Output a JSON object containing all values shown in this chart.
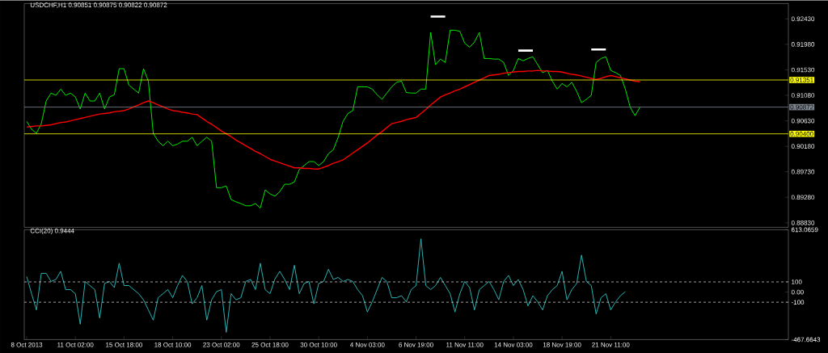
{
  "chart_data": [
    {
      "type": "line",
      "title": "USDCHF,H1 0.90851 0.90875 0.90822 0.90872",
      "categories": [
        null,
        null,
        null,
        null,
        null,
        null,
        null,
        null,
        null,
        null,
        null,
        null,
        null,
        null,
        null,
        null,
        null,
        null,
        null,
        null,
        null,
        null,
        null,
        null,
        null,
        null,
        null,
        null,
        null,
        null,
        null,
        null,
        null,
        null,
        null,
        null,
        null,
        null,
        null,
        null,
        null,
        null,
        null,
        null,
        null,
        null,
        null,
        null,
        null,
        null,
        null,
        null,
        null,
        null,
        null,
        null,
        null,
        null,
        null,
        null,
        null,
        null,
        null,
        null,
        null,
        null,
        null,
        null,
        null,
        null,
        null,
        null,
        null,
        null,
        null,
        null,
        null,
        null,
        null,
        null,
        null,
        null,
        null,
        null,
        null,
        null,
        null,
        null,
        null,
        null,
        null,
        null,
        null,
        null,
        null,
        null,
        null,
        null,
        null,
        null,
        null,
        null,
        null,
        null,
        null,
        null,
        null,
        null,
        null,
        null,
        null,
        null,
        null,
        null,
        null,
        null,
        null,
        null,
        null,
        null,
        null,
        null,
        null,
        null,
        null,
        null,
        null,
        null,
        null,
        null,
        null,
        null,
        null,
        null,
        null,
        null,
        null,
        null,
        null,
        null,
        null,
        null,
        null,
        null,
        null,
        null,
        null,
        null,
        null,
        null,
        null,
        null,
        null,
        null,
        null,
        null,
        null
      ],
      "ylim": [
        0.8875,
        0.927
      ],
      "yticks": [
        {
          "value": 0.8883,
          "label": "0.88830"
        },
        {
          "value": 0.8928,
          "label": "0.89280"
        },
        {
          "value": 0.8973,
          "label": "0.89730"
        },
        {
          "value": 0.9018,
          "label": "0.90180"
        },
        {
          "value": 0.9063,
          "label": "0.90630"
        },
        {
          "value": 0.9108,
          "label": "0.91080"
        },
        {
          "value": 0.9153,
          "label": "0.91530"
        },
        {
          "value": 0.9198,
          "label": "0.91980"
        },
        {
          "value": 0.9243,
          "label": "0.92430"
        }
      ],
      "tick_labels": "y",
      "series": [
        {
          "color": "#00ff00",
          "values": [
            0.9062,
            0.9048,
            0.9041,
            0.9058,
            0.9098,
            0.9112,
            0.9108,
            0.9119,
            0.9108,
            0.9112,
            0.9105,
            0.9084,
            0.9112,
            0.9098,
            0.9098,
            0.9112,
            0.9084,
            0.9105,
            0.9109,
            0.9155,
            0.9155,
            0.9126,
            0.9119,
            0.9112,
            0.9155,
            0.9133,
            0.9041,
            0.9027,
            0.9019,
            0.9027,
            0.9019,
            0.9022,
            0.9027,
            0.9027,
            0.9034,
            0.9019,
            0.9027,
            0.9034,
            0.9027,
            0.8945,
            0.8945,
            0.8948,
            0.8924,
            0.892,
            0.8917,
            0.8913,
            0.8913,
            0.8917,
            0.8909,
            0.8941,
            0.8934,
            0.893,
            0.8938,
            0.8951,
            0.8951,
            0.8955,
            0.8977,
            0.8984,
            0.8991,
            0.8991,
            0.8984,
            0.8991,
            0.9005,
            0.9012,
            0.9034,
            0.9062,
            0.9076,
            0.9081,
            0.9123,
            0.9123,
            0.9123,
            0.9119,
            0.9109,
            0.9101,
            0.9112,
            0.9123,
            0.9131,
            0.9133,
            0.9113,
            0.9112,
            0.9112,
            0.9119,
            0.9119,
            0.9219,
            0.9162,
            0.9172,
            0.9166,
            0.9223,
            0.9223,
            0.9221,
            0.92,
            0.9193,
            0.9202,
            0.9219,
            0.9173,
            0.9173,
            0.9172,
            0.9172,
            0.9166,
            0.9143,
            0.9152,
            0.9173,
            0.9169,
            0.9173,
            0.9176,
            0.9162,
            0.9148,
            0.9152,
            0.9133,
            0.9119,
            0.9129,
            0.9123,
            0.9131,
            0.9115,
            0.9095,
            0.9101,
            0.9108,
            0.9166,
            0.9173,
            0.9176,
            0.9152,
            0.9148,
            0.9143,
            0.9119,
            0.9087,
            0.9072,
            0.9087,
            null,
            null,
            null,
            null,
            null,
            null,
            null,
            null,
            null,
            null,
            null,
            null,
            null,
            null,
            null,
            null,
            null,
            null,
            null,
            null,
            null,
            null,
            null,
            null,
            null,
            null,
            null,
            null,
            null,
            null
          ]
        },
        {
          "color": "#ff0000",
          "values": [
            0.9052,
            0.9053,
            0.9054,
            0.9054,
            0.9055,
            0.9056,
            0.9058,
            0.906,
            0.9061,
            0.9063,
            0.9065,
            0.9067,
            0.9069,
            0.9071,
            0.9073,
            0.9075,
            0.9076,
            0.9077,
            0.9079,
            0.908,
            0.9081,
            0.9084,
            0.9088,
            0.9091,
            0.9095,
            0.9098,
            0.9095,
            0.9091,
            0.9088,
            0.9084,
            0.9081,
            0.908,
            0.9078,
            0.9077,
            0.9075,
            0.9074,
            0.9068,
            0.9062,
            0.9057,
            0.9051,
            0.9045,
            0.904,
            0.9035,
            0.9029,
            0.9024,
            0.9019,
            0.9014,
            0.9009,
            0.9005,
            0.9,
            0.8995,
            0.8992,
            0.8989,
            0.8986,
            0.8983,
            0.898,
            0.898,
            0.8979,
            0.8979,
            0.8978,
            0.8978,
            0.8981,
            0.8984,
            0.8988,
            0.8991,
            0.8994,
            0.9,
            0.9006,
            0.9012,
            0.9018,
            0.9024,
            0.9031,
            0.9038,
            0.9044,
            0.9051,
            0.9058,
            0.906,
            0.9062,
            0.9065,
            0.9067,
            0.9069,
            0.9076,
            0.9083,
            0.9091,
            0.9098,
            0.9105,
            0.9109,
            0.9112,
            0.9116,
            0.9119,
            0.9123,
            0.9127,
            0.9131,
            0.9135,
            0.9139,
            0.9143,
            0.9144,
            0.9145,
            0.9147,
            0.9148,
            0.9149,
            0.915,
            0.915,
            0.9151,
            0.9151,
            0.9152,
            0.9151,
            0.9151,
            0.915,
            0.915,
            0.9149,
            0.9147,
            0.9145,
            0.9144,
            0.9142,
            0.914,
            0.9138,
            0.9136,
            0.9138,
            0.9141,
            0.9143,
            0.9141,
            0.9139,
            0.9137,
            0.9135,
            0.9133,
            0.9132,
            null,
            null,
            null,
            null,
            null,
            null,
            null,
            null,
            null,
            null,
            null,
            null,
            null,
            null,
            null,
            null,
            null,
            null,
            null,
            null,
            null,
            null,
            null,
            null,
            null,
            null,
            null,
            null,
            null,
            null
          ]
        },
        {
          "color": "#ffffff",
          "values": [
            null,
            null,
            null,
            null,
            null,
            null,
            null,
            null,
            null,
            null,
            null,
            null,
            null,
            null,
            null,
            null,
            null,
            null,
            null,
            null,
            null,
            null,
            null,
            null,
            null,
            null,
            null,
            null,
            null,
            null,
            null,
            null,
            null,
            null,
            null,
            null,
            null,
            null,
            null,
            null,
            null,
            null,
            null,
            null,
            null,
            null,
            null,
            null,
            null,
            null,
            null,
            null,
            null,
            null,
            null,
            null,
            null,
            null,
            null,
            null,
            null,
            null,
            null,
            null,
            null,
            null,
            null,
            null,
            null,
            null,
            null,
            null,
            null,
            null,
            null,
            null,
            null,
            null,
            null,
            null,
            null,
            null,
            null,
            0.9247,
            0.9247,
            0.9247,
            0.9247,
            null,
            null,
            null,
            null,
            null,
            null,
            null,
            null,
            null,
            null,
            null,
            null,
            null,
            null,
            0.9187,
            0.9187,
            0.9187,
            0.9187,
            null,
            null,
            null,
            null,
            null,
            null,
            null,
            null,
            null,
            null,
            null,
            0.9189,
            0.9189,
            0.9189,
            0.9189,
            null,
            null,
            null,
            null,
            null,
            null,
            null,
            null,
            null,
            null,
            null,
            null,
            null,
            null,
            null,
            null,
            null,
            null,
            null,
            null,
            null,
            null,
            null,
            null,
            null,
            null,
            null,
            null,
            null,
            null,
            null,
            null,
            null,
            null,
            null,
            null,
            null
          ]
        }
      ],
      "ref_lines": [
        {
          "axis": "y",
          "value": 0.91351,
          "label": "0.91351",
          "color": "#ffff00"
        },
        {
          "axis": "y",
          "value": 0.90872,
          "label": "0.90872",
          "color": "#7f8790"
        },
        {
          "axis": "y",
          "value": 0.904,
          "label": "0.90400",
          "color": "#ffff00"
        }
      ]
    },
    {
      "type": "line",
      "title": "CCI(20) 0.9444",
      "categories": [
        "8 Oct 2013",
        null,
        null,
        null,
        null,
        null,
        null,
        null,
        null,
        null,
        "11 Oct 02:00",
        null,
        null,
        null,
        null,
        null,
        null,
        null,
        null,
        null,
        "15 Oct 18:00",
        null,
        null,
        null,
        null,
        null,
        null,
        null,
        null,
        null,
        "18 Oct 10:00",
        null,
        null,
        null,
        null,
        null,
        null,
        null,
        null,
        null,
        "23 Oct 02:00",
        null,
        null,
        null,
        null,
        null,
        null,
        null,
        null,
        null,
        "25 Oct 18:00",
        null,
        null,
        null,
        null,
        null,
        null,
        null,
        null,
        null,
        "30 Oct 10:00",
        null,
        null,
        null,
        null,
        null,
        null,
        null,
        null,
        null,
        "4 Nov 03:00",
        null,
        null,
        null,
        null,
        null,
        null,
        null,
        null,
        null,
        "6 Nov 19:00",
        null,
        null,
        null,
        null,
        null,
        null,
        null,
        null,
        null,
        "11 Nov 11:00",
        null,
        null,
        null,
        null,
        null,
        null,
        null,
        null,
        null,
        "14 Nov 03:00",
        null,
        null,
        null,
        null,
        null,
        null,
        null,
        null,
        null,
        "18 Nov 19:00",
        null,
        null,
        null,
        null,
        null,
        null,
        null,
        null,
        null,
        "21 Nov 11:00",
        null,
        null,
        null,
        null,
        null,
        null,
        null,
        null,
        null,
        null,
        null,
        null,
        null,
        null,
        null,
        null,
        null,
        null,
        null,
        null,
        null,
        null,
        null,
        null,
        null,
        null,
        null,
        null,
        null,
        null,
        null,
        null,
        null,
        null,
        null,
        null
      ],
      "ylim": [
        -467.6643,
        613.0659
      ],
      "yticks": [
        {
          "value": -467.6643,
          "label": "-467.6643"
        },
        -100,
        {
          "value": 0,
          "label": "0.00"
        },
        100,
        {
          "value": 613.0659,
          "label": "613.0659"
        }
      ],
      "series": [
        {
          "color": "#2ec4c4",
          "values": [
            152,
            -16,
            -176,
            184,
            184,
            104,
            124,
            204,
            24,
            24,
            -16,
            -316,
            104,
            64,
            24,
            -256,
            84,
            104,
            44,
            284,
            64,
            64,
            24,
            -16,
            -76,
            -176,
            -276,
            -56,
            -16,
            24,
            -56,
            64,
            164,
            104,
            -116,
            -56,
            64,
            -276,
            -76,
            4,
            24,
            -396,
            -16,
            -76,
            -56,
            104,
            124,
            24,
            284,
            24,
            -16,
            128,
            204,
            124,
            24,
            264,
            -16,
            84,
            104,
            -116,
            84,
            104,
            224,
            124,
            144,
            104,
            124,
            104,
            24,
            -36,
            -196,
            -96,
            24,
            144,
            104,
            -56,
            -56,
            -36,
            -96,
            24,
            64,
            524,
            64,
            24,
            64,
            144,
            64,
            -16,
            -196,
            -16,
            104,
            44,
            -176,
            24,
            64,
            104,
            24,
            -76,
            104,
            164,
            64,
            124,
            24,
            -136,
            -36,
            -96,
            -176,
            -36,
            24,
            64,
            204,
            -76,
            24,
            84,
            364,
            104,
            64,
            -216,
            -56,
            -16,
            -176,
            -96,
            -36,
            4,
            null,
            null,
            null,
            null,
            null,
            null,
            null,
            null,
            null,
            null,
            null,
            null,
            null,
            null,
            null,
            null,
            null,
            null,
            null,
            null,
            null,
            null,
            null,
            null,
            null,
            null,
            null,
            null,
            null,
            null,
            null,
            null,
            null
          ]
        }
      ],
      "ref_lines": [
        {
          "axis": "y",
          "value": 100,
          "color": "#c8c8c8",
          "line_style": "dashed"
        },
        {
          "axis": "y",
          "value": -100,
          "color": "#c8c8c8",
          "line_style": "dashed"
        }
      ]
    }
  ]
}
